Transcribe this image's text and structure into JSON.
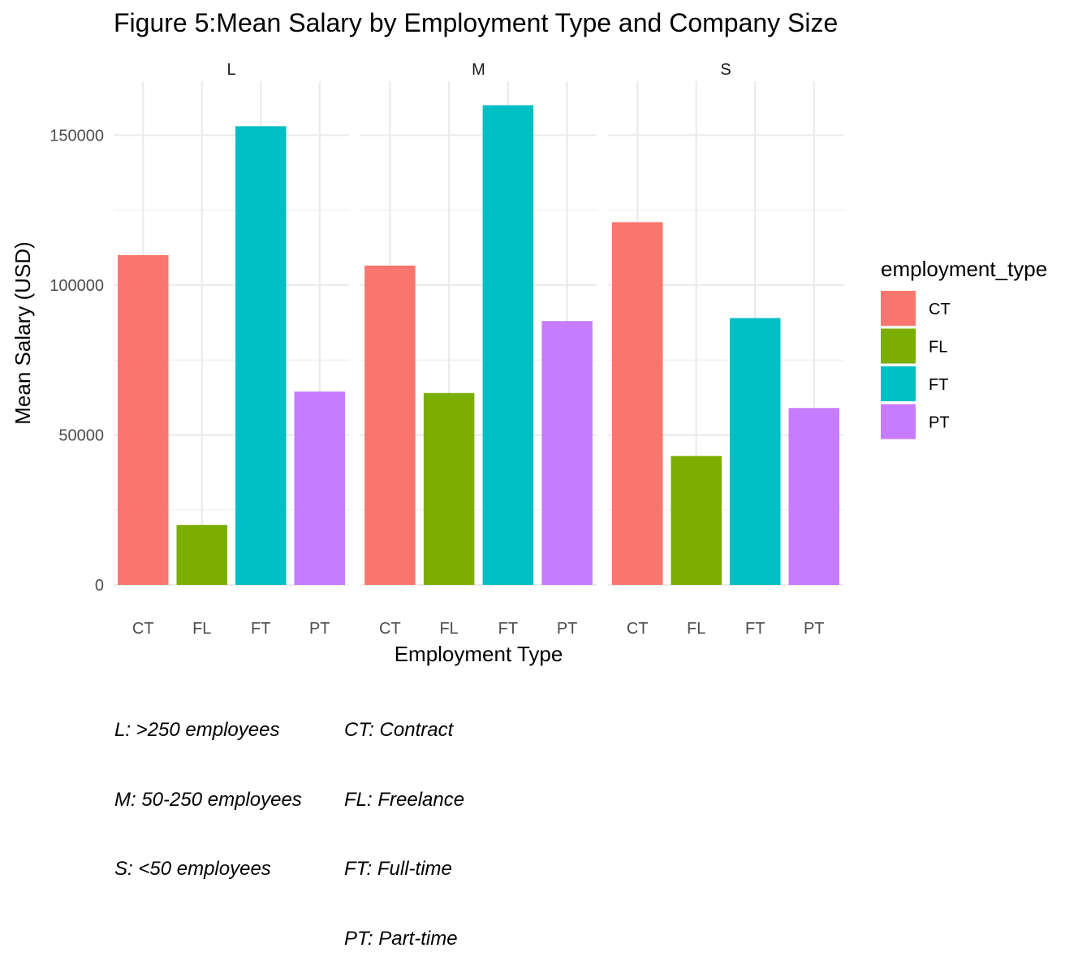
{
  "chart_data": {
    "type": "bar",
    "title": "Figure 5:Mean Salary by Employment Type and Company Size",
    "xlabel": "Employment Type",
    "ylabel": "Mean Salary (USD)",
    "ylim": [
      0,
      168000
    ],
    "yticks": [
      0,
      50000,
      100000,
      150000
    ],
    "grid": true,
    "facets": [
      "L",
      "M",
      "S"
    ],
    "categories": [
      "CT",
      "FL",
      "FT",
      "PT"
    ],
    "series": [
      {
        "facet": "L",
        "values": [
          110000,
          20000,
          153000,
          64500
        ]
      },
      {
        "facet": "M",
        "values": [
          106500,
          64000,
          160000,
          88000
        ]
      },
      {
        "facet": "S",
        "values": [
          121000,
          43000,
          89000,
          59000
        ]
      }
    ],
    "legend": {
      "title": "employment_type",
      "position": "right",
      "entries": [
        "CT",
        "FL",
        "FT",
        "PT"
      ]
    },
    "colors": {
      "CT": "#F8766D",
      "FL": "#7CAE00",
      "FT": "#00BFC4",
      "PT": "#C77CFF"
    }
  },
  "caption": {
    "left_lines": [
      "L: >250 employees",
      "M: 50-250 employees",
      "S: <50 employees"
    ],
    "right_lines": [
      "CT: Contract",
      "FL: Freelance",
      "FT: Full-time",
      "PT: Part-time"
    ]
  }
}
